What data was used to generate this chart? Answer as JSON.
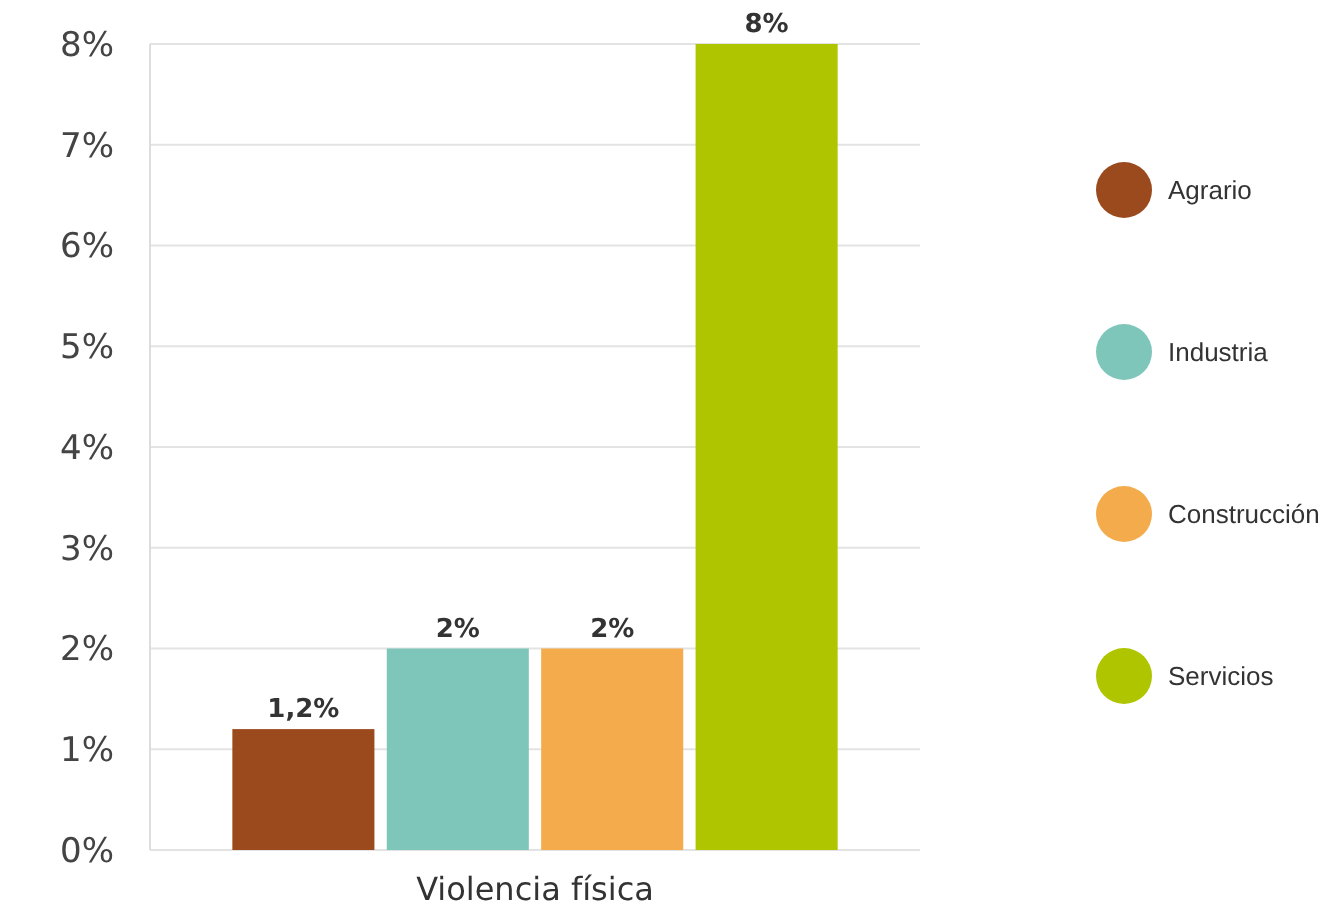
{
  "chart_data": {
    "type": "bar",
    "xlabel": "Violencia física",
    "categories": [
      null
    ],
    "series": [
      {
        "name": "Agrario",
        "color": "#9b4a1e",
        "values": [
          1.2
        ],
        "value_labels": [
          "1,2%"
        ]
      },
      {
        "name": "Industria",
        "color": "#7fc6ba",
        "values": [
          2
        ],
        "value_labels": [
          "2%"
        ]
      },
      {
        "name": "Construcción",
        "color": "#f4ab4c",
        "values": [
          2
        ],
        "value_labels": [
          "2%"
        ]
      },
      {
        "name": "Servicios",
        "color": "#afc500",
        "values": [
          8
        ],
        "value_labels": [
          "8%"
        ]
      }
    ],
    "ylim": [
      0,
      8
    ],
    "yticks": [
      {
        "value": 0,
        "label": "0%"
      },
      {
        "value": 1,
        "label": "1%"
      },
      {
        "value": 2,
        "label": "2%"
      },
      {
        "value": 3,
        "label": "3%"
      },
      {
        "value": 4,
        "label": "4%"
      },
      {
        "value": 5,
        "label": "5%"
      },
      {
        "value": 6,
        "label": "6%"
      },
      {
        "value": 7,
        "label": "7%"
      },
      {
        "value": 8,
        "label": "8%"
      }
    ],
    "grid": "y",
    "legend": "right"
  }
}
